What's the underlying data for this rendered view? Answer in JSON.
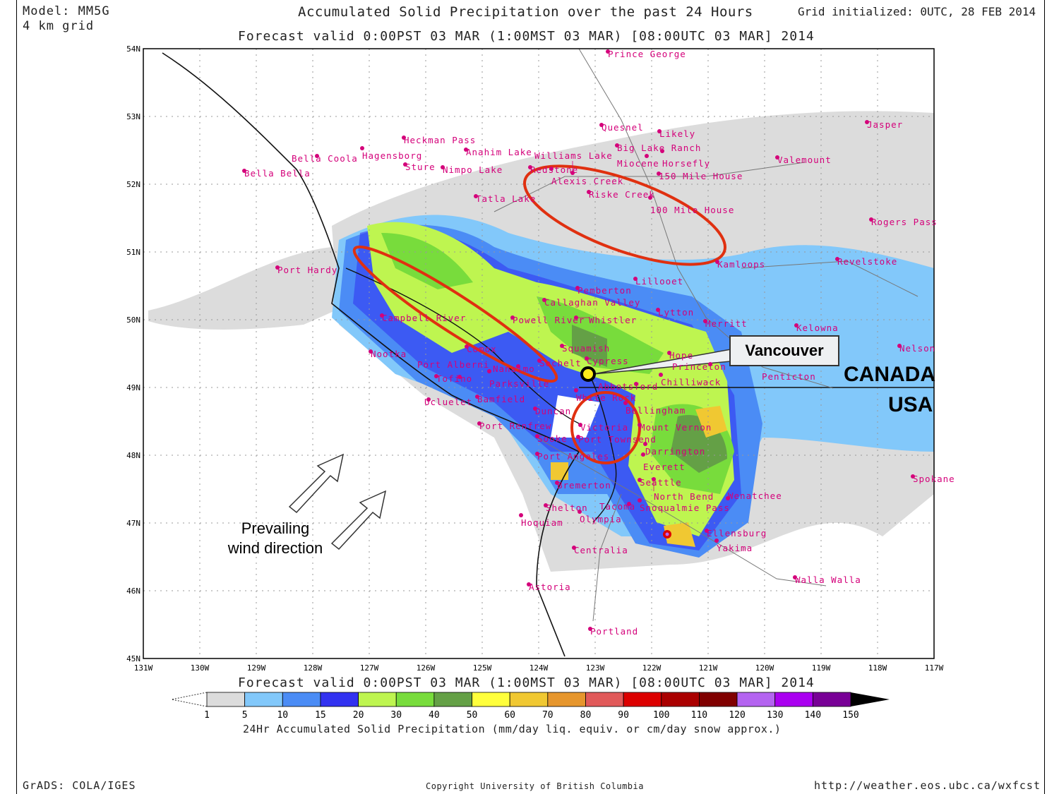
{
  "header": {
    "model": "Model: MM5G",
    "grid": "4 km grid",
    "title": "Accumulated Solid Precipitation over the past 24 Hours",
    "initialized": "Grid initialized: 0UTC, 28 FEB 2014",
    "valid": "Forecast valid 0:00PST 03 MAR (1:00MST 03 MAR) [08:00UTC 03 MAR] 2014"
  },
  "map": {
    "lat_labels": [
      "54N",
      "53N",
      "52N",
      "51N",
      "50N",
      "49N",
      "48N",
      "47N",
      "46N",
      "45N"
    ],
    "lon_labels": [
      "131W",
      "130W",
      "129W",
      "128W",
      "127W",
      "126W",
      "125W",
      "124W",
      "123W",
      "122W",
      "121W",
      "120W",
      "119W",
      "118W",
      "117W"
    ],
    "city_color": "#d4007a",
    "cities": [
      "Prince George",
      "Quesnel",
      "Likely",
      "Jasper",
      "Heckman Pass",
      "Hagensborg",
      "Bella Coola",
      "Anahim Lake",
      "Big Lake Ranch",
      "Horsefly",
      "Miocene",
      "Valemount",
      "Sture",
      "Nimpo Lake",
      "Bella Bella",
      "Redstone",
      "Alexis Creek",
      "Williams Lake",
      "150 Mile House",
      "Riske Creek",
      "Tatla Lake",
      "100 Mile House",
      "Rogers Pass",
      "Kamloops",
      "Revelstoke",
      "Port Hardy",
      "Lillooet",
      "Pemberton",
      "Callaghan Valley",
      "Lytton",
      "Campbell River",
      "Powell River",
      "Whistler",
      "Merritt",
      "Kelowna",
      "Squamish",
      "Nelson",
      "Comox",
      "Hope",
      "Nootka",
      "Sechelt",
      "Cypress",
      "Princeton",
      "Penticton",
      "Nanaimo",
      "Parksville",
      "Tofino",
      "Port Alberni",
      "Chilliwack",
      "Abbotsford",
      "White Rock",
      "Bellingham",
      "Bamfield",
      "Ucluelet",
      "Duncan",
      "Port Renfrew",
      "Victoria",
      "Mount Vernon",
      "Sooke",
      "Port Townsend",
      "Darrington",
      "Port Angeles",
      "Everett",
      "Bremerton",
      "Seattle",
      "North Bend",
      "Snoqualmie Pass",
      "Wenatchee",
      "Tacoma",
      "Shelton",
      "Olympia",
      "Hoquiam",
      "Ellensburg",
      "Yakima",
      "Centralia",
      "Spokane",
      "Walla Walla",
      "Astoria",
      "Portland"
    ]
  },
  "annotations": {
    "vancouver": "Vancouver",
    "canada": "CANADA",
    "usa": "USA",
    "wind_line1": "Prevailing",
    "wind_line2": "wind direction",
    "ellipse_color": "#e03010"
  },
  "legend": {
    "valid": "Forecast valid 0:00PST 03 MAR (1:00MST 03 MAR) [08:00UTC 03 MAR] 2014",
    "ticks": [
      "1",
      "5",
      "10",
      "15",
      "20",
      "30",
      "40",
      "50",
      "60",
      "70",
      "80",
      "90",
      "100",
      "110",
      "120",
      "130",
      "140",
      "150"
    ],
    "colors": [
      "#dcdcdc",
      "#82c8fa",
      "#4b8cf5",
      "#3232f0",
      "#bef550",
      "#78dc3c",
      "#64a046",
      "#ffff3c",
      "#f0c832",
      "#e6962d",
      "#e15a5a",
      "#dc0000",
      "#aa0000",
      "#800000",
      "#b464f0",
      "#aa00f0",
      "#780096"
    ],
    "label": "24Hr Accumulated Solid Precipitation (mm/day liq. equiv. or cm/day snow approx.)"
  },
  "footer": {
    "left": "GrADS: COLA/IGES",
    "center": "Copyright University of British Columbia",
    "right": "http://weather.eos.ubc.ca/wxfcst"
  }
}
